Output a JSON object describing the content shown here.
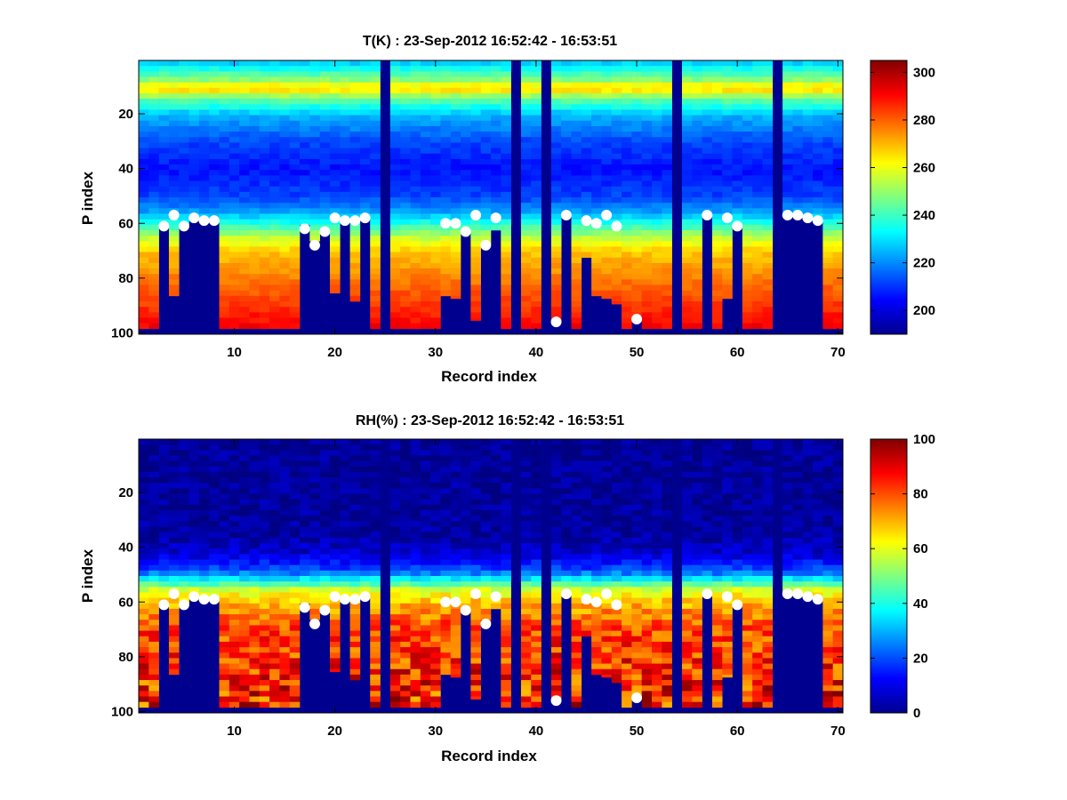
{
  "figure": {
    "background": "#ffffff",
    "colormap": "jet",
    "marker_color": "#ffffff",
    "no_data_color": "#00008f"
  },
  "chart_data": [
    {
      "type": "heatmap",
      "title": "T(K) : 23-Sep-2012 16:52:42 - 16:53:51",
      "xlabel": "Record index",
      "ylabel": "P index",
      "x_range": [
        0.5,
        70.5
      ],
      "y_range": [
        0.5,
        100.5
      ],
      "y_reversed": true,
      "x_ticks": [
        10,
        20,
        30,
        40,
        50,
        60,
        70
      ],
      "y_ticks": [
        20,
        40,
        60,
        80,
        100
      ],
      "x_tick_labels": [
        "10",
        "20",
        "30",
        "40",
        "50",
        "60",
        "70"
      ],
      "y_tick_labels": [
        "20",
        "40",
        "60",
        "80",
        "100"
      ],
      "colorbar": {
        "range": [
          190,
          305
        ],
        "ticks": [
          200,
          220,
          240,
          260,
          280,
          300
        ],
        "tick_labels": [
          "200",
          "220",
          "240",
          "260",
          "280",
          "300"
        ]
      },
      "empty_records": [
        25,
        38,
        41,
        54,
        64
      ],
      "profile_bottom_index": [
        98,
        98,
        60,
        86,
        60,
        58,
        58,
        58,
        98,
        98,
        98,
        98,
        98,
        98,
        98,
        98,
        60,
        66,
        62,
        85,
        58,
        88,
        58,
        98,
        0,
        98,
        98,
        98,
        98,
        98,
        86,
        87,
        62,
        95,
        67,
        62,
        98,
        0,
        98,
        98,
        0,
        95,
        57,
        98,
        72,
        86,
        87,
        89,
        98,
        95,
        98,
        98,
        98,
        0,
        98,
        98,
        57,
        98,
        87,
        60,
        98,
        98,
        98,
        0,
        57,
        57,
        57,
        59,
        98,
        98
      ],
      "value_profile": {
        "p_index": [
          1,
          8,
          10,
          14,
          20,
          30,
          40,
          50,
          55,
          60,
          65,
          70,
          80,
          90,
          98
        ],
        "value": [
          228,
          252,
          270,
          245,
          225,
          212,
          206,
          212,
          222,
          238,
          256,
          268,
          277,
          285,
          292
        ]
      },
      "markers": [
        {
          "record": 3,
          "p_index": 61
        },
        {
          "record": 4,
          "p_index": 57
        },
        {
          "record": 5,
          "p_index": 61
        },
        {
          "record": 6,
          "p_index": 58
        },
        {
          "record": 7,
          "p_index": 59
        },
        {
          "record": 8,
          "p_index": 59
        },
        {
          "record": 17,
          "p_index": 62
        },
        {
          "record": 18,
          "p_index": 68
        },
        {
          "record": 19,
          "p_index": 63
        },
        {
          "record": 20,
          "p_index": 58
        },
        {
          "record": 21,
          "p_index": 59
        },
        {
          "record": 22,
          "p_index": 59
        },
        {
          "record": 23,
          "p_index": 58
        },
        {
          "record": 31,
          "p_index": 60
        },
        {
          "record": 32,
          "p_index": 60
        },
        {
          "record": 33,
          "p_index": 63
        },
        {
          "record": 34,
          "p_index": 57
        },
        {
          "record": 35,
          "p_index": 68
        },
        {
          "record": 36,
          "p_index": 58
        },
        {
          "record": 42,
          "p_index": 96
        },
        {
          "record": 43,
          "p_index": 57
        },
        {
          "record": 45,
          "p_index": 59
        },
        {
          "record": 46,
          "p_index": 60
        },
        {
          "record": 47,
          "p_index": 57
        },
        {
          "record": 48,
          "p_index": 61
        },
        {
          "record": 50,
          "p_index": 95
        },
        {
          "record": 57,
          "p_index": 57
        },
        {
          "record": 59,
          "p_index": 58
        },
        {
          "record": 60,
          "p_index": 61
        },
        {
          "record": 65,
          "p_index": 57
        },
        {
          "record": 66,
          "p_index": 57
        },
        {
          "record": 67,
          "p_index": 58
        },
        {
          "record": 68,
          "p_index": 59
        }
      ]
    },
    {
      "type": "heatmap",
      "title": "RH(%) : 23-Sep-2012 16:52:42 - 16:53:51",
      "xlabel": "Record index",
      "ylabel": "P index",
      "x_range": [
        0.5,
        70.5
      ],
      "y_range": [
        0.5,
        100.5
      ],
      "y_reversed": true,
      "x_ticks": [
        10,
        20,
        30,
        40,
        50,
        60,
        70
      ],
      "y_ticks": [
        20,
        40,
        60,
        80,
        100
      ],
      "x_tick_labels": [
        "10",
        "20",
        "30",
        "40",
        "50",
        "60",
        "70"
      ],
      "y_tick_labels": [
        "20",
        "40",
        "60",
        "80",
        "100"
      ],
      "colorbar": {
        "range": [
          0,
          100
        ],
        "ticks": [
          0,
          20,
          40,
          60,
          80,
          100
        ],
        "tick_labels": [
          "0",
          "20",
          "40",
          "60",
          "80",
          "100"
        ]
      },
      "empty_records": [
        25,
        38,
        41,
        54,
        64
      ],
      "profile_bottom_index": [
        98,
        98,
        60,
        86,
        60,
        58,
        58,
        58,
        98,
        98,
        98,
        98,
        98,
        98,
        98,
        98,
        60,
        66,
        62,
        85,
        58,
        88,
        58,
        98,
        0,
        98,
        98,
        98,
        98,
        98,
        86,
        87,
        62,
        95,
        67,
        62,
        98,
        0,
        98,
        98,
        0,
        95,
        57,
        98,
        72,
        86,
        87,
        89,
        98,
        95,
        98,
        98,
        98,
        0,
        98,
        98,
        57,
        98,
        87,
        60,
        98,
        98,
        98,
        0,
        57,
        57,
        57,
        59,
        98,
        98
      ],
      "value_profile": {
        "p_index": [
          1,
          35,
          42,
          48,
          52,
          55,
          58,
          62,
          68,
          75,
          85,
          98
        ],
        "value": [
          2,
          3,
          8,
          20,
          40,
          58,
          66,
          72,
          80,
          82,
          84,
          86
        ]
      },
      "markers": [
        {
          "record": 3,
          "p_index": 61
        },
        {
          "record": 4,
          "p_index": 57
        },
        {
          "record": 5,
          "p_index": 61
        },
        {
          "record": 6,
          "p_index": 58
        },
        {
          "record": 7,
          "p_index": 59
        },
        {
          "record": 8,
          "p_index": 59
        },
        {
          "record": 17,
          "p_index": 62
        },
        {
          "record": 18,
          "p_index": 68
        },
        {
          "record": 19,
          "p_index": 63
        },
        {
          "record": 20,
          "p_index": 58
        },
        {
          "record": 21,
          "p_index": 59
        },
        {
          "record": 22,
          "p_index": 59
        },
        {
          "record": 23,
          "p_index": 58
        },
        {
          "record": 31,
          "p_index": 60
        },
        {
          "record": 32,
          "p_index": 60
        },
        {
          "record": 33,
          "p_index": 63
        },
        {
          "record": 34,
          "p_index": 57
        },
        {
          "record": 35,
          "p_index": 68
        },
        {
          "record": 36,
          "p_index": 58
        },
        {
          "record": 42,
          "p_index": 96
        },
        {
          "record": 43,
          "p_index": 57
        },
        {
          "record": 45,
          "p_index": 59
        },
        {
          "record": 46,
          "p_index": 60
        },
        {
          "record": 47,
          "p_index": 57
        },
        {
          "record": 48,
          "p_index": 61
        },
        {
          "record": 50,
          "p_index": 95
        },
        {
          "record": 57,
          "p_index": 57
        },
        {
          "record": 59,
          "p_index": 58
        },
        {
          "record": 60,
          "p_index": 61
        },
        {
          "record": 65,
          "p_index": 57
        },
        {
          "record": 66,
          "p_index": 57
        },
        {
          "record": 67,
          "p_index": 58
        },
        {
          "record": 68,
          "p_index": 59
        }
      ]
    }
  ]
}
